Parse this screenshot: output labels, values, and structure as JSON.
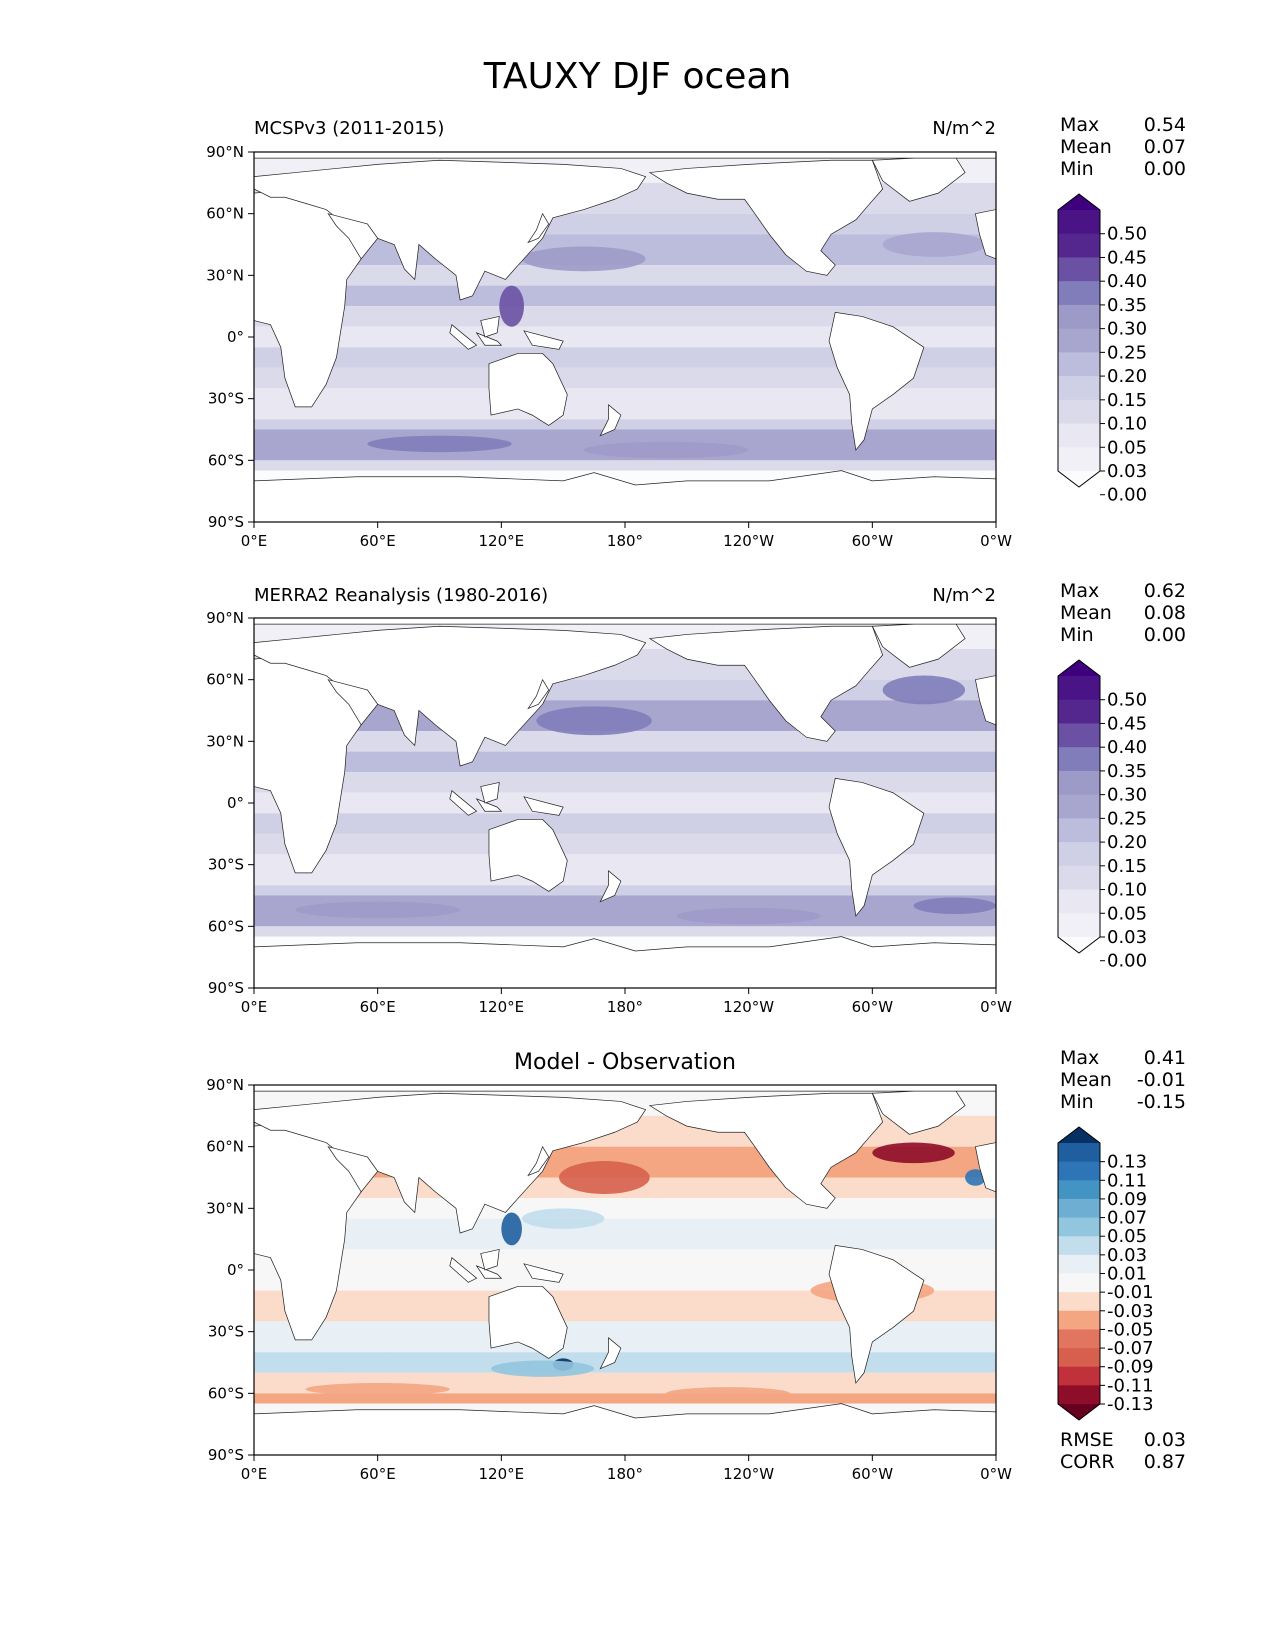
{
  "figure": {
    "title": "TAUXY DJF ocean"
  },
  "chart_data": [
    {
      "type": "heatmap",
      "title": "MCSPv3 (2011-2015)",
      "units": "N/m^2",
      "x_ticks": [
        "0°E",
        "60°E",
        "120°E",
        "180°",
        "120°W",
        "60°W",
        "0°W"
      ],
      "y_ticks": [
        "90°N",
        "60°N",
        "30°N",
        "0°",
        "30°S",
        "60°S",
        "90°S"
      ],
      "xlim": [
        0,
        360
      ],
      "ylim": [
        -90,
        90
      ],
      "stats": [
        {
          "label": "Max",
          "value": "0.54"
        },
        {
          "label": "Mean",
          "value": "0.07"
        },
        {
          "label": "Min",
          "value": "0.00"
        }
      ],
      "colorbar": {
        "colormap": "purples",
        "labels": [
          "0.50",
          "0.45",
          "0.40",
          "0.35",
          "0.30",
          "0.25",
          "0.20",
          "0.15",
          "0.10",
          "0.05",
          "0.03",
          "0.00"
        ],
        "colors": [
          "#3f007d",
          "#4a1486",
          "#54278f",
          "#6a51a3",
          "#807dba",
          "#9e9ac8",
          "#a8a5cf",
          "#bcbddc",
          "#cfcfe6",
          "#dadaeb",
          "#e8e7f2",
          "#f2f0f7",
          "#fcfbfd"
        ]
      }
    },
    {
      "type": "heatmap",
      "title": "MERRA2 Reanalysis (1980-2016)",
      "units": "N/m^2",
      "x_ticks": [
        "0°E",
        "60°E",
        "120°E",
        "180°",
        "120°W",
        "60°W",
        "0°W"
      ],
      "y_ticks": [
        "90°N",
        "60°N",
        "30°N",
        "0°",
        "30°S",
        "60°S",
        "90°S"
      ],
      "xlim": [
        0,
        360
      ],
      "ylim": [
        -90,
        90
      ],
      "stats": [
        {
          "label": "Max",
          "value": "0.62"
        },
        {
          "label": "Mean",
          "value": "0.08"
        },
        {
          "label": "Min",
          "value": "0.00"
        }
      ],
      "colorbar": {
        "colormap": "purples",
        "labels": [
          "0.50",
          "0.45",
          "0.40",
          "0.35",
          "0.30",
          "0.25",
          "0.20",
          "0.15",
          "0.10",
          "0.05",
          "0.03",
          "0.00"
        ],
        "colors": [
          "#3f007d",
          "#4a1486",
          "#54278f",
          "#6a51a3",
          "#807dba",
          "#9e9ac8",
          "#a8a5cf",
          "#bcbddc",
          "#cfcfe6",
          "#dadaeb",
          "#e8e7f2",
          "#f2f0f7",
          "#fcfbfd"
        ]
      }
    },
    {
      "type": "heatmap",
      "title": "Model - Observation",
      "units": "",
      "x_ticks": [
        "0°E",
        "60°E",
        "120°E",
        "180°",
        "120°W",
        "60°W",
        "0°W"
      ],
      "y_ticks": [
        "90°N",
        "60°N",
        "30°N",
        "0°",
        "30°S",
        "60°S",
        "90°S"
      ],
      "xlim": [
        0,
        360
      ],
      "ylim": [
        -90,
        90
      ],
      "stats": [
        {
          "label": "Max",
          "value": "0.41"
        },
        {
          "label": "Mean",
          "value": "-0.01"
        },
        {
          "label": "Min",
          "value": "-0.15"
        }
      ],
      "metrics": [
        {
          "label": "RMSE",
          "value": "0.03"
        },
        {
          "label": "CORR",
          "value": "0.87"
        }
      ],
      "colorbar": {
        "colormap": "RdBu",
        "labels": [
          "0.13",
          "0.11",
          "0.09",
          "0.07",
          "0.05",
          "0.03",
          "0.01",
          "-0.01",
          "-0.03",
          "-0.05",
          "-0.07",
          "-0.09",
          "-0.11",
          "-0.13"
        ],
        "colors": [
          "#053061",
          "#1f5fa0",
          "#2d75b6",
          "#4393c3",
          "#6eaed2",
          "#92c5de",
          "#c2ddec",
          "#e8f0f6",
          "#f7f7f7",
          "#fbdcca",
          "#f4a582",
          "#e2755f",
          "#d6604d",
          "#c0313b",
          "#8e0d28",
          "#67001f"
        ]
      }
    }
  ]
}
